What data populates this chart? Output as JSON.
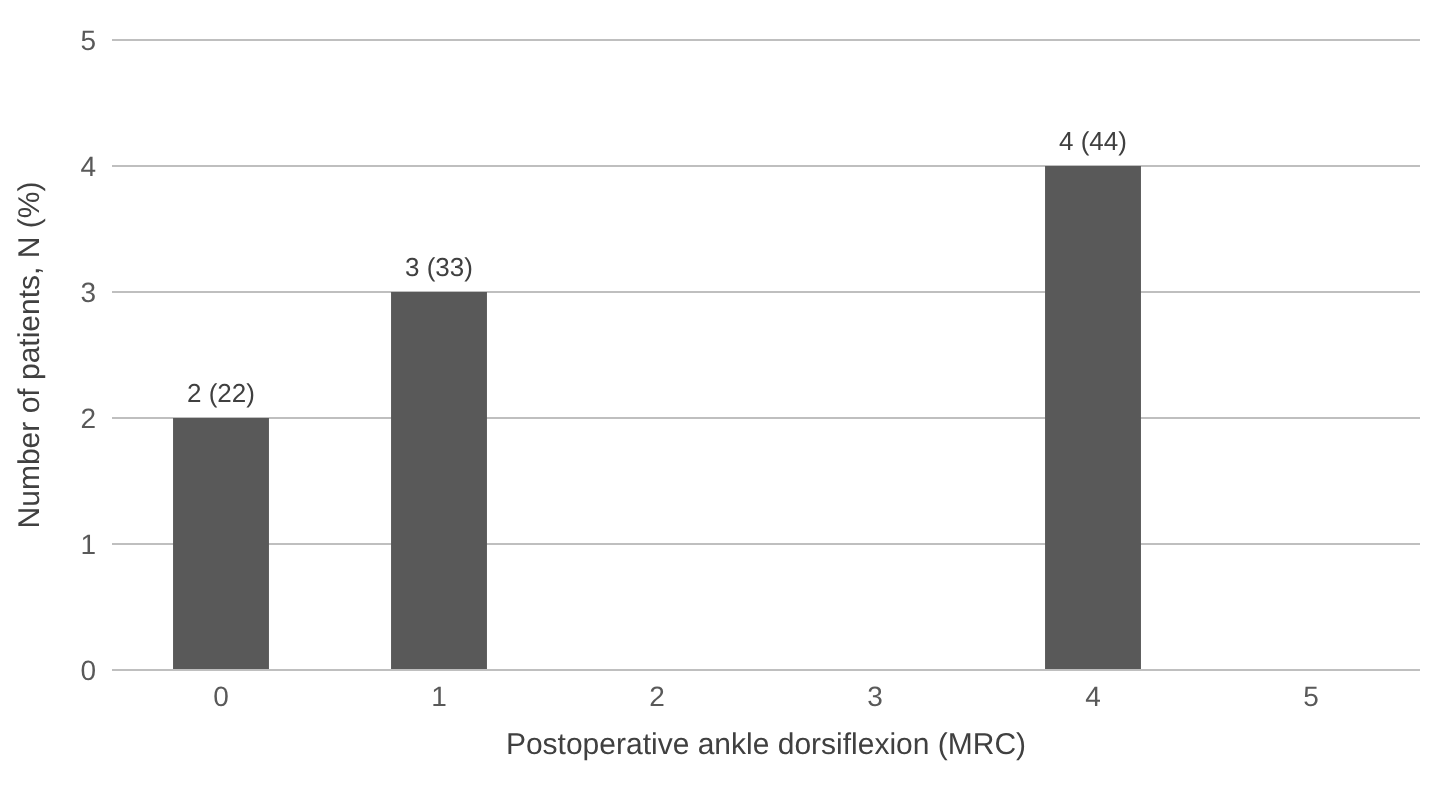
{
  "chart_data": {
    "type": "bar",
    "xlabel": "Postoperative ankle dorsiflexion (MRC)",
    "ylabel": "Number of patients, N (%)",
    "categories": [
      "0",
      "1",
      "2",
      "3",
      "4",
      "5"
    ],
    "values": [
      2,
      3,
      0,
      0,
      4,
      0
    ],
    "value_labels": [
      "2 (22)",
      "3 (33)",
      null,
      null,
      "4 (44)",
      null
    ],
    "color": "#595959",
    "ylim": [
      0,
      5
    ],
    "yticks": [
      0,
      1,
      2,
      3,
      4,
      5
    ],
    "grid": "y"
  }
}
